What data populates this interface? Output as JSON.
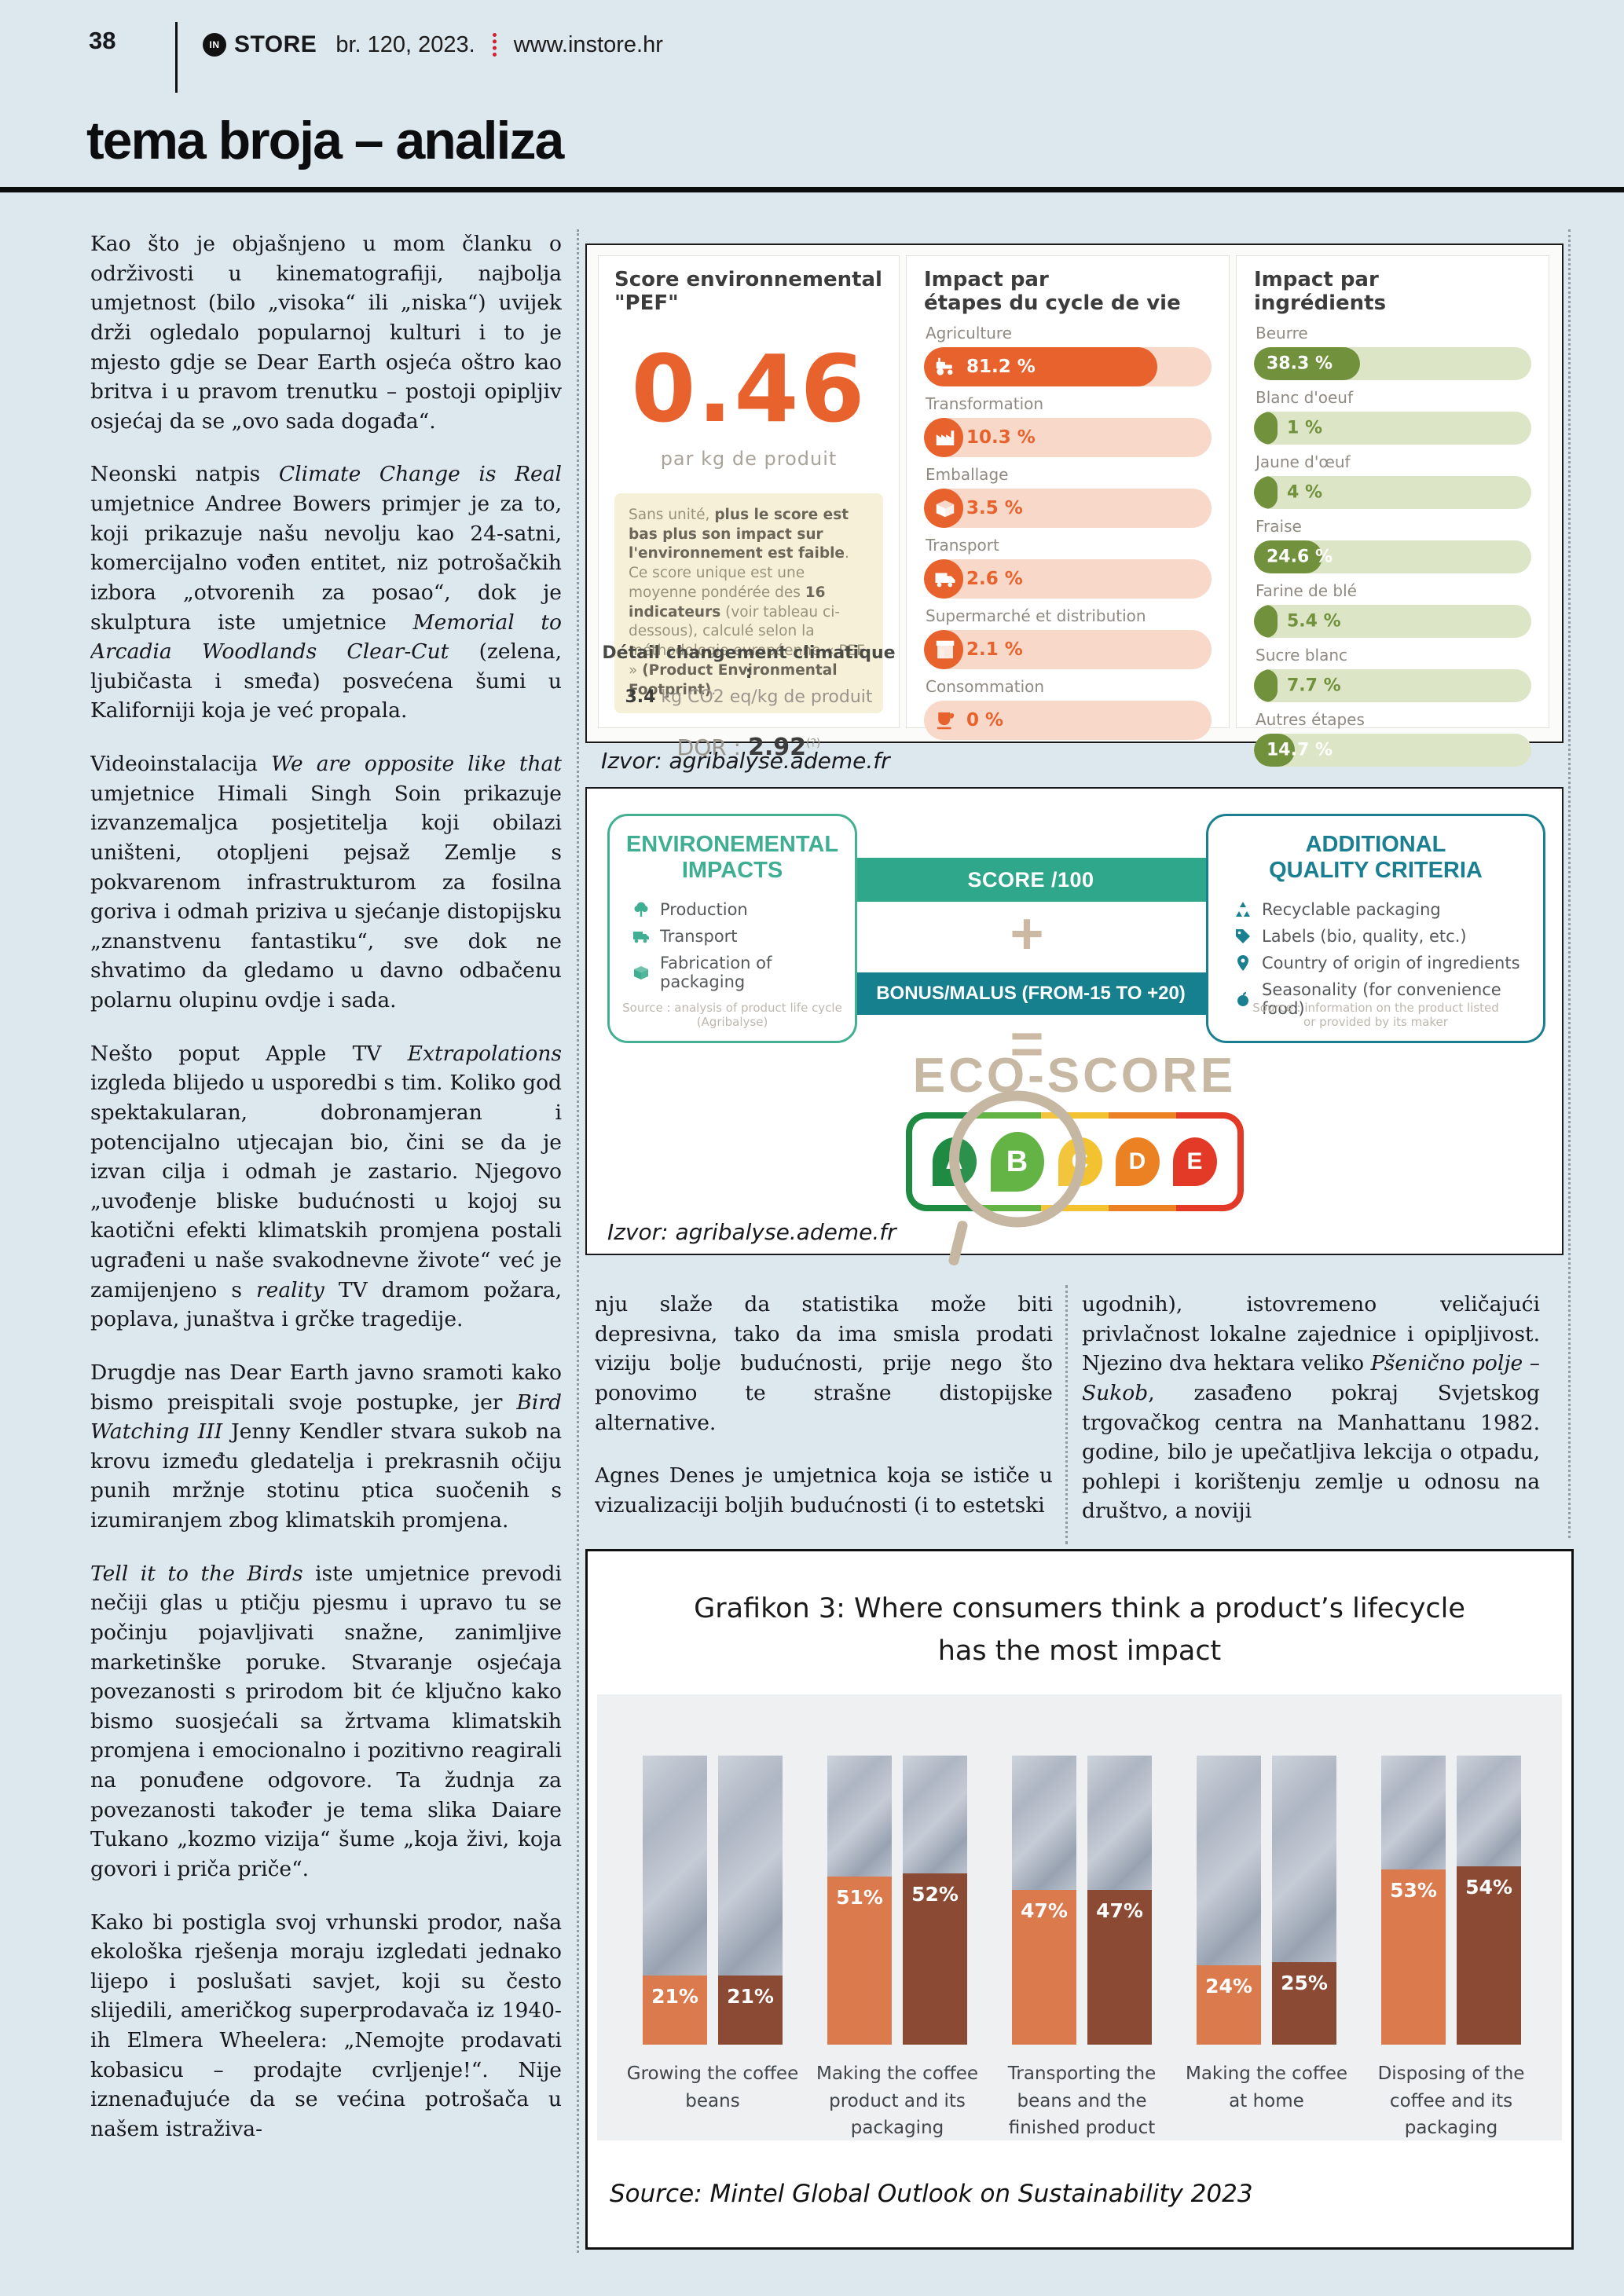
{
  "header": {
    "page_number": "38",
    "brand_badge": "IN",
    "brand": "STORE",
    "issue": "br. 120, 2023.",
    "site": "www.instore.hr"
  },
  "section": {
    "title": "tema broja – analiza"
  },
  "article": {
    "col1": [
      [
        {
          "t": "Kao što je objašnjeno u mom članku o održivosti u kinematografiji, najbolja umjetnost (bilo „visoka“ ili „niska“) uvijek drži ogledalo popularnoj kulturi i to je mjesto gdje se Dear Earth osjeća oštro kao britva i u pravom trenutku – postoji opipljiv osjećaj da se „ovo sada događa“."
        }
      ],
      [
        {
          "t": "Neonski natpis "
        },
        {
          "t": "Climate Change is Real",
          "i": 1
        },
        {
          "t": " umjetnice Andree Bowers primjer je za to, koji prikazuje našu nevolju kao 24-satni, komercijalno vođen entitet, niz potrošačkih izbora „otvorenih za posao“, dok je skulptura iste umjetnice "
        },
        {
          "t": "Memorial to Arcadia Woodlands Clear-Cut",
          "i": 1
        },
        {
          "t": " (zelena, ljubičasta i smeđa) posvećena šumi u Kaliforniji koja je već propala."
        }
      ],
      [
        {
          "t": "Videoinstalacija "
        },
        {
          "t": "We are opposite like that",
          "i": 1
        },
        {
          "t": " umjetnice Himali Singh Soin prikazuje izvanzemaljca posjetitelja koji obilazi uništeni, otopljeni pejsaž Zemlje s pokvarenom infrastrukturom za fosilna goriva i odmah priziva u sjećanje distopijsku „znanstvenu fantastiku“, sve dok ne shvatimo da gledamo u davno odbačenu polarnu olupinu ovdje i sada."
        }
      ],
      [
        {
          "t": "Nešto poput Apple TV "
        },
        {
          "t": "Extrapolations",
          "i": 1
        },
        {
          "t": " izgleda blijedo u usporedbi s tim. Koliko god spektakularan, dobronamjeran i potencijalno utjecajan bio, čini se da je izvan cilja i odmah je zastario. Njegovo „uvođenje bliske budućnosti u kojoj su kaotični efekti klimatskih promjena postali ugrađeni u naše svakodnevne živote“ već je zamijenjeno s "
        },
        {
          "t": "reality",
          "i": 1
        },
        {
          "t": " TV dramom požara, poplava, junaštva i grčke tragedije."
        }
      ],
      [
        {
          "t": "Drugdje nas Dear Earth javno sramoti kako bismo preispitali svoje postupke, jer "
        },
        {
          "t": "Bird Watching III",
          "i": 1
        },
        {
          "t": " Jenny Kendler stvara sukob na krovu između gledatelja i prekrasnih očiju punih mržnje stotinu ptica suočenih s izumiranjem zbog klimatskih promjena."
        }
      ],
      [
        {
          "t": "Tell it to the Birds",
          "i": 1
        },
        {
          "t": " iste umjetnice prevodi nečiji glas u ptičju pjesmu i upravo tu se počinju pojavljivati snažne, zanimljive marketinške poruke. Stvaranje osjećaja povezanosti s prirodom bit će ključno kako bismo suosjećali sa žrtvama klimatskih promjena i emocionalno i pozitivno reagirali na ponuđene odgovore. Ta žudnja za povezanosti također je tema slika Daiare Tukano „kozmo vizija“ šume „koja živi, koja govori i priča priče“."
        }
      ],
      [
        {
          "t": "Kako bi postigla svoj vrhunski prodor, naša ekološka rješenja moraju izgledati jednako lijepo i poslušati savjet, koji su često slijedili, američkog superprodavača iz 1940-ih Elmera Wheelera: „Nemojte prodavati kobasicu – prodajte cvrljenje!“. Nije iznenađujuće da se većina potrošača u našem istraživa-"
        }
      ]
    ],
    "col2": [
      [
        {
          "t": "nju slaže da statistika može biti depresivna, tako da ima smisla prodati viziju bolje budućnosti, prije nego što ponovimo te strašne distopijske alternative."
        }
      ],
      [
        {
          "t": "Agnes Denes je umjetnica koja se ističe u vizualizaciji boljih budućnosti (i to estetski"
        }
      ]
    ],
    "col3": [
      [
        {
          "t": "ugodnih), istovremeno veličajući privlačnost lokalne zajednice i opipljivost. Njezino dva hektara veliko "
        },
        {
          "t": "Pšenično polje – Sukob",
          "i": 1
        },
        {
          "t": ", zasađeno pokraj Svjetskog trgovačkog centra na Manhattanu 1982. godine, bilo je upečatljiva lekcija o otpadu, pohlepi i korištenju zemlje u odnosu na društvo, a noviji"
        }
      ]
    ]
  },
  "fig_pef": {
    "caption": "Izvor: agribalyse.ademe.fr",
    "score_panel": {
      "title": "Score environnemental \"PEF\"",
      "score": "0.46",
      "unit": "par kg de produit",
      "note": [
        {
          "t": "Sans unité, "
        },
        {
          "t": "plus le score est bas plus son impact sur l'environnement est faible",
          "b": 1
        },
        {
          "t": ". Ce score unique est une moyenne pondérée des "
        },
        {
          "t": "16 indicateurs",
          "b": 1
        },
        {
          "t": " (voir tableau ci-dessous), calculé selon la méthodologie européenne « PEF » "
        },
        {
          "t": "(Product Environmental Footprint)",
          "b": 1
        },
        {
          "t": "."
        }
      ],
      "dqr_label": "DQR :",
      "dqr_value": "2.92",
      "dqr_sup": "(?)",
      "climate_label": "Détail changement climatique :",
      "climate_value": "3.4",
      "climate_unit": " kg CO2 eq/kg de produit"
    },
    "stages_panel": {
      "title_line1": "Impact par",
      "title_line2": "étapes du cycle de vie",
      "accent_color": "#e8622d",
      "track_color": "#f8d8c8",
      "bars": [
        {
          "label": "Agriculture",
          "icon": "tractor-icon",
          "value": 81.2,
          "pct": "81.2 %"
        },
        {
          "label": "Transformation",
          "icon": "factory-icon",
          "value": 10.3,
          "pct": "10.3 %"
        },
        {
          "label": "Emballage",
          "icon": "package-icon",
          "value": 3.5,
          "pct": "3.5 %"
        },
        {
          "label": "Transport",
          "icon": "truck-icon",
          "value": 2.6,
          "pct": "2.6 %"
        },
        {
          "label": "Supermarché et distribution",
          "icon": "store-icon",
          "value": 2.1,
          "pct": "2.1 %"
        },
        {
          "label": "Consommation",
          "icon": "consumption-icon",
          "value": 0,
          "pct": "0 %"
        }
      ]
    },
    "ingredients_panel": {
      "title_line1": "Impact par",
      "title_line2": "ingrédients",
      "accent_color": "#71913d",
      "track_color": "#dce5c6",
      "bars": [
        {
          "label": "Beurre",
          "value": 38.3,
          "pct": "38.3 %"
        },
        {
          "label": "Blanc d'oeuf",
          "value": 1,
          "pct": "1 %"
        },
        {
          "label": "Jaune d'œuf",
          "value": 4,
          "pct": "4 %"
        },
        {
          "label": "Fraise",
          "value": 24.6,
          "pct": "24.6 %"
        },
        {
          "label": "Farine de blé",
          "value": 5.4,
          "pct": "5.4 %"
        },
        {
          "label": "Sucre blanc",
          "value": 7.7,
          "pct": "7.7 %"
        },
        {
          "label": "Autres étapes",
          "value": 14.7,
          "pct": "14.7 %"
        }
      ]
    }
  },
  "fig_eco": {
    "caption": "Izvor: agribalyse.ademe.fr",
    "left_card": {
      "title_line1": "ENVIRONEMENTAL",
      "title_line2": "IMPACTS",
      "accent_color": "#3fae92",
      "items": [
        {
          "icon": "tree-icon",
          "label": "Production"
        },
        {
          "icon": "truck-icon",
          "label": "Transport"
        },
        {
          "icon": "package-icon",
          "label": "Fabrication of packaging"
        }
      ],
      "source": "Source : analysis of product life cycle (Agribalyse)"
    },
    "middle": {
      "score_banner": "SCORE /100",
      "plus": "+",
      "bonus_banner": "BONUS/MALUS (FROM-15 TO +20)",
      "equals": "="
    },
    "right_card": {
      "title_line1": "ADDITIONAL",
      "title_line2": "QUALITY CRITERIA",
      "accent_color": "#1a7f90",
      "items": [
        {
          "icon": "recycle-icon",
          "label": "Recyclable packaging"
        },
        {
          "icon": "tag-icon",
          "label": "Labels (bio, quality, etc.)"
        },
        {
          "icon": "pin-icon",
          "label": "Country of origin of ingredients"
        },
        {
          "icon": "apple-icon",
          "label": "Seasonality (for convenience food)"
        }
      ],
      "source_line1": "Source : information on the product listed",
      "source_line2": "or provided by its maker"
    },
    "ecoscore": {
      "title": "ECO-SCORE",
      "grades": [
        {
          "letter": "A",
          "color": "#1f8b42"
        },
        {
          "letter": "B",
          "color": "#5aaf3a",
          "magnified": true
        },
        {
          "letter": "C",
          "color": "#f2c231"
        },
        {
          "letter": "D",
          "color": "#ec8123"
        },
        {
          "letter": "E",
          "color": "#e23a27"
        }
      ]
    }
  },
  "chart": {
    "title_line1": "Grafikon 3: Where consumers think a product’s lifecycle",
    "title_line2": "has the most impact",
    "source": "Source: Mintel Global Outlook on Sustainability 2023"
  },
  "chart_data": {
    "type": "bar",
    "title": "Grafikon 3: Where consumers think a product’s lifecycle has the most impact",
    "categories": [
      "Growing the coffee beans",
      "Making the coffee product and its packaging",
      "Transporting the beans and the finished product",
      "Making the coffee at home",
      "Disposing of the coffee and its packaging"
    ],
    "series": [
      {
        "name": "left-bar",
        "color": "#db7a4d",
        "values": [
          21,
          51,
          47,
          24,
          53
        ]
      },
      {
        "name": "right-bar",
        "color": "#8b4a33",
        "values": [
          21,
          52,
          47,
          25,
          54
        ]
      }
    ],
    "value_labels": [
      [
        "21%",
        "21%"
      ],
      [
        "51%",
        "52%"
      ],
      [
        "47%",
        "47%"
      ],
      [
        "24%",
        "25%"
      ],
      [
        "53%",
        "54%"
      ]
    ],
    "unit": "%",
    "ylim": [
      0,
      100
    ],
    "legend": false,
    "source": "Source: Mintel Global Outlook on Sustainability 2023"
  }
}
